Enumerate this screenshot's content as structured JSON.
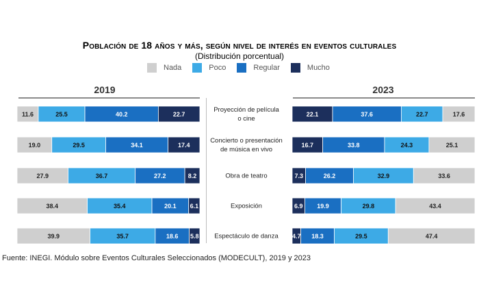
{
  "chart_data": {
    "type": "bar",
    "title": "Población de 18 años y más, según nivel de interés en eventos culturales",
    "subtitle": "(Distribución porcentual)",
    "source": "Fuente: INEGI. Módulo sobre Eventos Culturales Seleccionados (MODECULT), 2019 y 2023",
    "legend": [
      {
        "name": "Nada",
        "color": "#cfcfcf"
      },
      {
        "name": "Poco",
        "color": "#3daae6"
      },
      {
        "name": "Regular",
        "color": "#1a6fc2"
      },
      {
        "name": "Mucho",
        "color": "#1c2f5c"
      }
    ],
    "categories": [
      "Proyección de película o cine",
      "Concierto o presentación de música en vivo",
      "Obra de teatro",
      "Exposición",
      "Espectáculo de danza"
    ],
    "category_lines": [
      [
        "Proyección de película",
        "o cine"
      ],
      [
        "Concierto o presentación",
        "de música en vivo"
      ],
      [
        "Obra de teatro"
      ],
      [
        "Exposición"
      ],
      [
        "Espectáculo de danza"
      ]
    ],
    "panels": [
      {
        "year": "2019",
        "order": [
          "Nada",
          "Poco",
          "Regular",
          "Mucho"
        ],
        "series": [
          {
            "name": "Nada",
            "values": [
              11.6,
              19.0,
              27.9,
              38.4,
              39.9
            ]
          },
          {
            "name": "Poco",
            "values": [
              25.5,
              29.5,
              36.7,
              35.4,
              35.7
            ]
          },
          {
            "name": "Regular",
            "values": [
              40.2,
              34.1,
              27.2,
              20.1,
              18.6
            ]
          },
          {
            "name": "Mucho",
            "values": [
              22.7,
              17.4,
              8.2,
              6.1,
              5.8
            ]
          }
        ]
      },
      {
        "year": "2023",
        "order": [
          "Mucho",
          "Regular",
          "Poco",
          "Nada"
        ],
        "series": [
          {
            "name": "Nada",
            "values": [
              17.6,
              25.1,
              33.6,
              43.4,
              47.4
            ]
          },
          {
            "name": "Poco",
            "values": [
              22.7,
              24.3,
              32.9,
              29.8,
              29.5
            ]
          },
          {
            "name": "Regular",
            "values": [
              37.6,
              33.8,
              26.2,
              19.9,
              18.3
            ]
          },
          {
            "name": "Mucho",
            "values": [
              22.1,
              16.7,
              7.3,
              6.9,
              4.7
            ]
          }
        ]
      }
    ],
    "xlim": [
      0,
      100
    ]
  }
}
